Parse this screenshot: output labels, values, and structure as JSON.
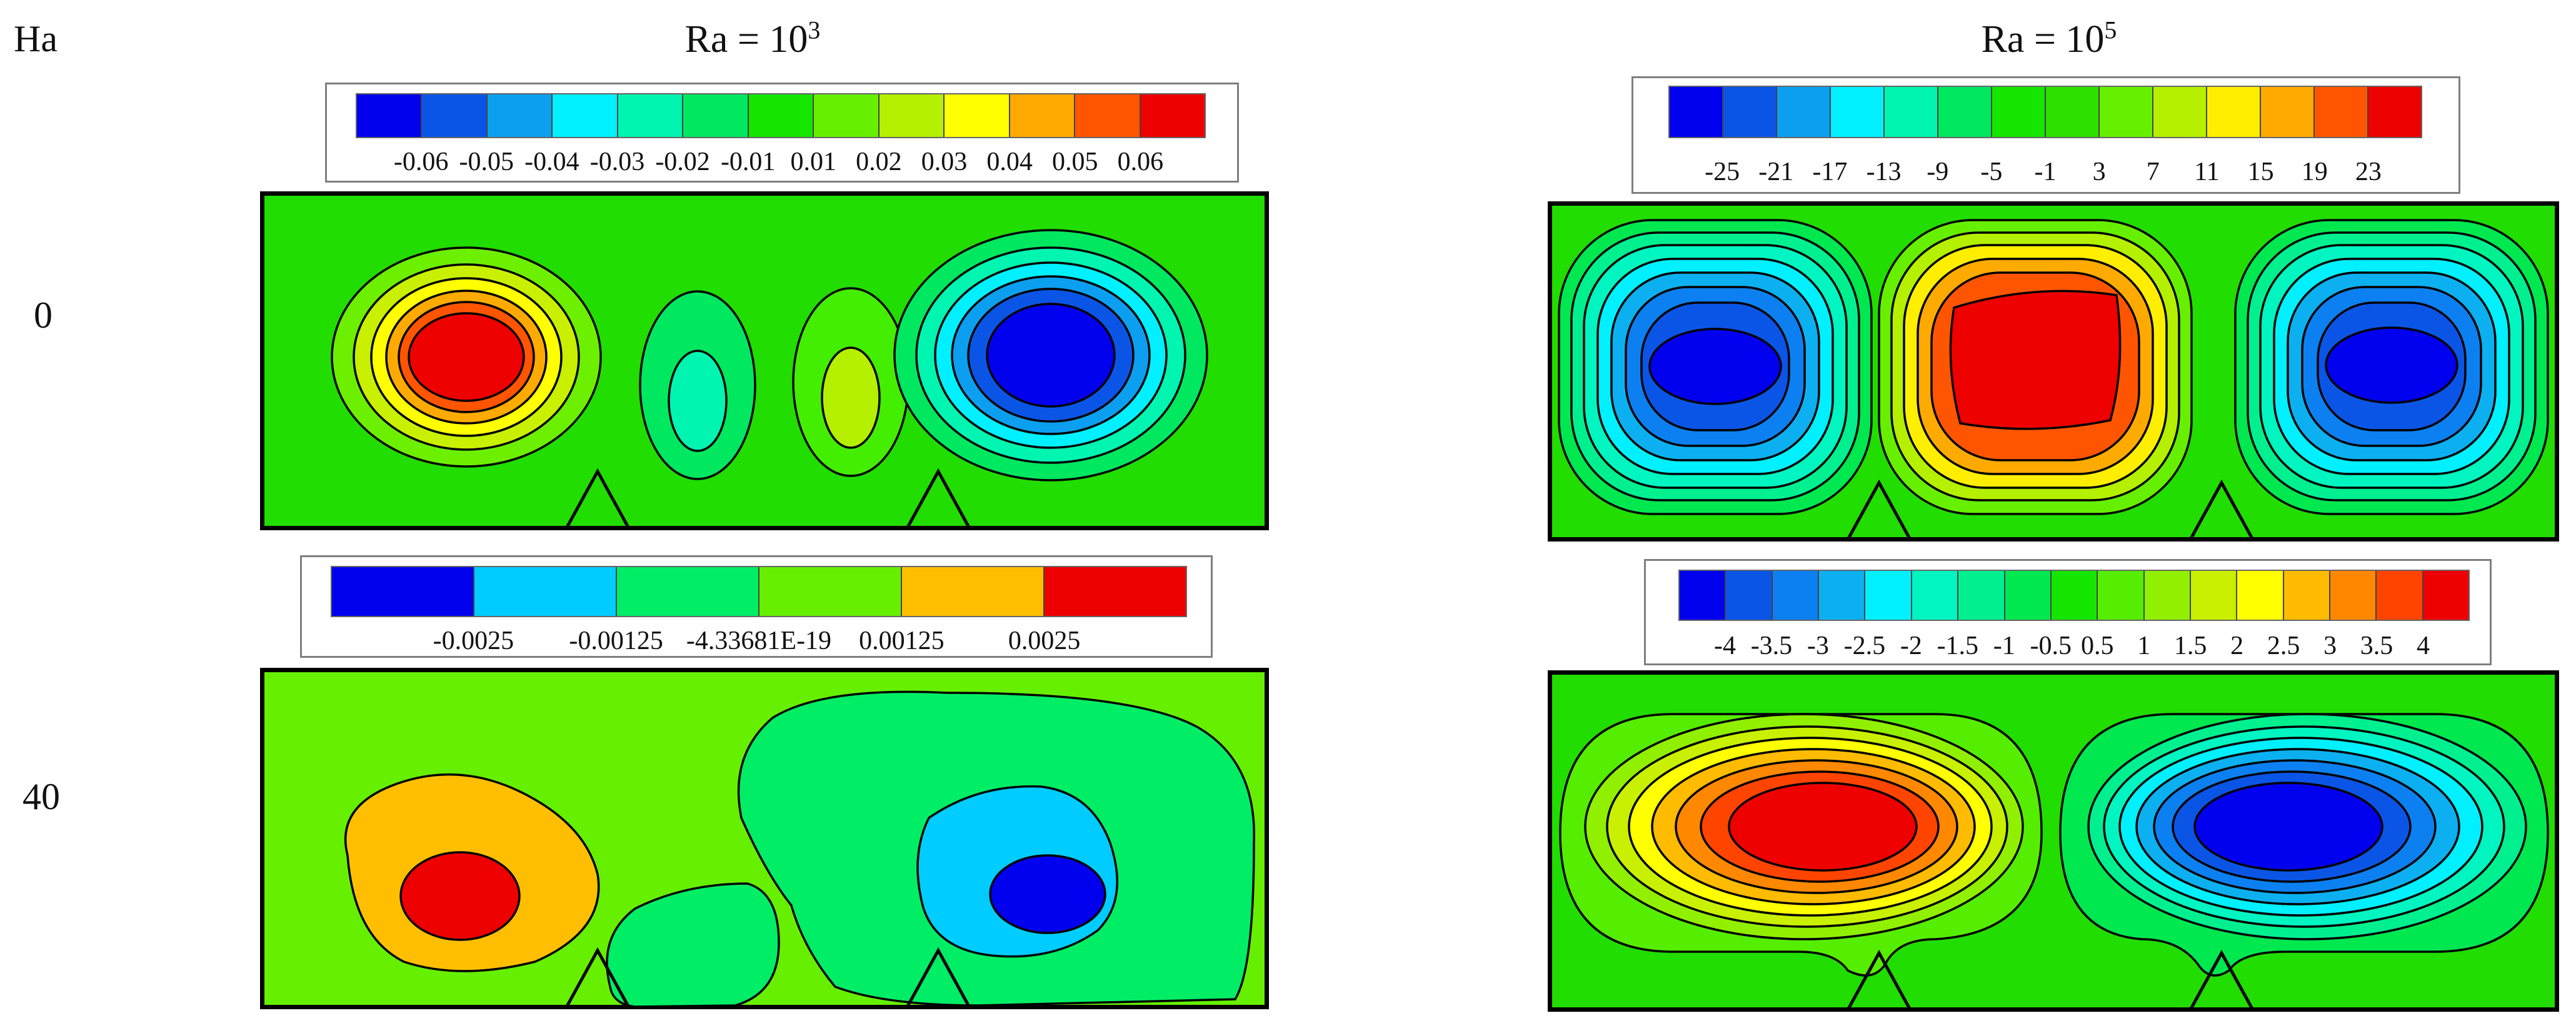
{
  "row_header": "Ha",
  "columns": [
    {
      "title_base": "Ra = 10",
      "title_exp": "3"
    },
    {
      "title_base": "Ra = 10",
      "title_exp": "5"
    }
  ],
  "rows": [
    {
      "label": "0"
    },
    {
      "label": "40"
    }
  ],
  "panels": [
    {
      "id": "ha0-ra1e3",
      "legend_colors": [
        "#0000ee",
        "#0a55e6",
        "#0c9ff0",
        "#00f0ff",
        "#00f5b0",
        "#00e860",
        "#14e600",
        "#66f000",
        "#b4f000",
        "#ffff00",
        "#ffaa00",
        "#ff5500",
        "#ee0000"
      ],
      "legend_labels": [
        "-0.06",
        "-0.05",
        "-0.04",
        "-0.03",
        "-0.02",
        "-0.01",
        "0.01",
        "0.02",
        "0.03",
        "0.04",
        "0.05",
        "0.06"
      ],
      "background": "#22dd00"
    },
    {
      "id": "ha0-ra1e5",
      "legend_colors": [
        "#0000ee",
        "#0a55e6",
        "#0c9ff0",
        "#00f0ff",
        "#00f5b0",
        "#00e860",
        "#14e600",
        "#2ee000",
        "#66f000",
        "#b4f000",
        "#ffee00",
        "#ffaa00",
        "#ff5500",
        "#ee0000"
      ],
      "legend_labels": [
        "-25",
        "-21",
        "-17",
        "-13",
        "-9",
        "-5",
        "-1",
        "3",
        "7",
        "11",
        "15",
        "19",
        "23"
      ],
      "background": "#22dd00"
    },
    {
      "id": "ha40-ra1e3",
      "legend_colors": [
        "#0000ee",
        "#00ccff",
        "#00ee66",
        "#66f000",
        "#ffbf00",
        "#ee0000"
      ],
      "legend_labels": [
        "-0.0025",
        "-0.00125",
        "-4.33681E-19",
        "0.00125",
        "0.0025"
      ],
      "background": "#66f000"
    },
    {
      "id": "ha40-ra1e5",
      "legend_colors": [
        "#0000ee",
        "#0a55e6",
        "#0c80f0",
        "#0cb0f0",
        "#00f0ff",
        "#00f5c0",
        "#00f090",
        "#00e850",
        "#14e600",
        "#55ee00",
        "#90f000",
        "#c8f000",
        "#ffff00",
        "#ffbb00",
        "#ff8800",
        "#ff4400",
        "#ee0000"
      ],
      "legend_labels": [
        "-4",
        "-3.5",
        "-3",
        "-2.5",
        "-2",
        "-1.5",
        "-1",
        "-0.5",
        "0.5",
        "1",
        "1.5",
        "2",
        "2.5",
        "3",
        "3.5",
        "4"
      ],
      "background": "#22dd00"
    }
  ]
}
